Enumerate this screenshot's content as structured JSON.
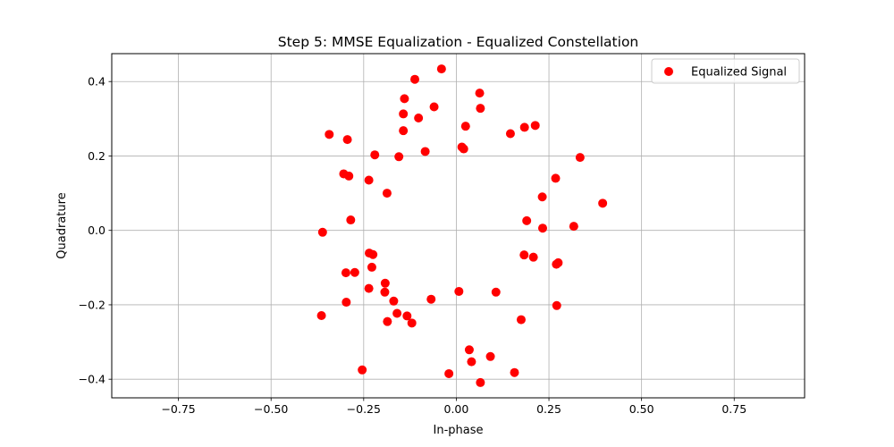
{
  "chart_data": {
    "type": "scatter",
    "title": "Step 5: MMSE Equalization - Equalized Constellation",
    "xlabel": "In-phase",
    "ylabel": "Quadrature",
    "xlim": [
      -0.93,
      0.94
    ],
    "ylim": [
      -0.45,
      0.475
    ],
    "xticks": [
      -0.75,
      -0.5,
      -0.25,
      0.0,
      0.25,
      0.5,
      0.75
    ],
    "xtick_labels": [
      "−0.75",
      "−0.50",
      "−0.25",
      "0.00",
      "0.25",
      "0.50",
      "0.75"
    ],
    "yticks": [
      -0.4,
      -0.2,
      0.0,
      0.2,
      0.4
    ],
    "ytick_labels": [
      "−0.4",
      "−0.2",
      "0.0",
      "0.2",
      "0.4"
    ],
    "grid": true,
    "legend_position": "top-right",
    "series": [
      {
        "name": "Equalized Signal",
        "color": "#ff0000",
        "marker": "circle",
        "points": [
          [
            -0.04,
            0.434
          ],
          [
            -0.112,
            0.406
          ],
          [
            -0.14,
            0.354
          ],
          [
            0.063,
            0.369
          ],
          [
            -0.06,
            0.332
          ],
          [
            -0.143,
            0.313
          ],
          [
            -0.102,
            0.302
          ],
          [
            0.065,
            0.328
          ],
          [
            0.025,
            0.28
          ],
          [
            -0.143,
            0.268
          ],
          [
            -0.343,
            0.258
          ],
          [
            0.146,
            0.26
          ],
          [
            0.184,
            0.277
          ],
          [
            0.213,
            0.282
          ],
          [
            -0.294,
            0.244
          ],
          [
            0.015,
            0.224
          ],
          [
            0.02,
            0.219
          ],
          [
            -0.084,
            0.212
          ],
          [
            -0.22,
            0.203
          ],
          [
            -0.155,
            0.198
          ],
          [
            0.334,
            0.196
          ],
          [
            -0.304,
            0.152
          ],
          [
            -0.29,
            0.146
          ],
          [
            -0.236,
            0.135
          ],
          [
            0.268,
            0.14
          ],
          [
            -0.187,
            0.1
          ],
          [
            0.232,
            0.09
          ],
          [
            0.395,
            0.073
          ],
          [
            -0.285,
            0.028
          ],
          [
            0.19,
            0.026
          ],
          [
            0.233,
            0.006
          ],
          [
            0.317,
            0.011
          ],
          [
            -0.361,
            -0.005
          ],
          [
            -0.235,
            -0.061
          ],
          [
            -0.225,
            -0.065
          ],
          [
            0.183,
            -0.066
          ],
          [
            0.208,
            -0.072
          ],
          [
            0.27,
            -0.091
          ],
          [
            0.275,
            -0.087
          ],
          [
            -0.228,
            -0.099
          ],
          [
            -0.298,
            -0.114
          ],
          [
            -0.274,
            -0.113
          ],
          [
            -0.192,
            -0.142
          ],
          [
            -0.236,
            -0.156
          ],
          [
            -0.193,
            -0.166
          ],
          [
            0.007,
            -0.164
          ],
          [
            0.107,
            -0.166
          ],
          [
            -0.068,
            -0.185
          ],
          [
            -0.169,
            -0.19
          ],
          [
            -0.297,
            -0.193
          ],
          [
            0.271,
            -0.202
          ],
          [
            -0.16,
            -0.223
          ],
          [
            -0.133,
            -0.23
          ],
          [
            -0.364,
            -0.229
          ],
          [
            -0.186,
            -0.245
          ],
          [
            -0.12,
            -0.249
          ],
          [
            0.175,
            -0.24
          ],
          [
            0.035,
            -0.321
          ],
          [
            0.092,
            -0.339
          ],
          [
            0.041,
            -0.353
          ],
          [
            -0.254,
            -0.375
          ],
          [
            0.157,
            -0.382
          ],
          [
            -0.02,
            -0.385
          ],
          [
            0.065,
            -0.409
          ]
        ]
      }
    ]
  }
}
